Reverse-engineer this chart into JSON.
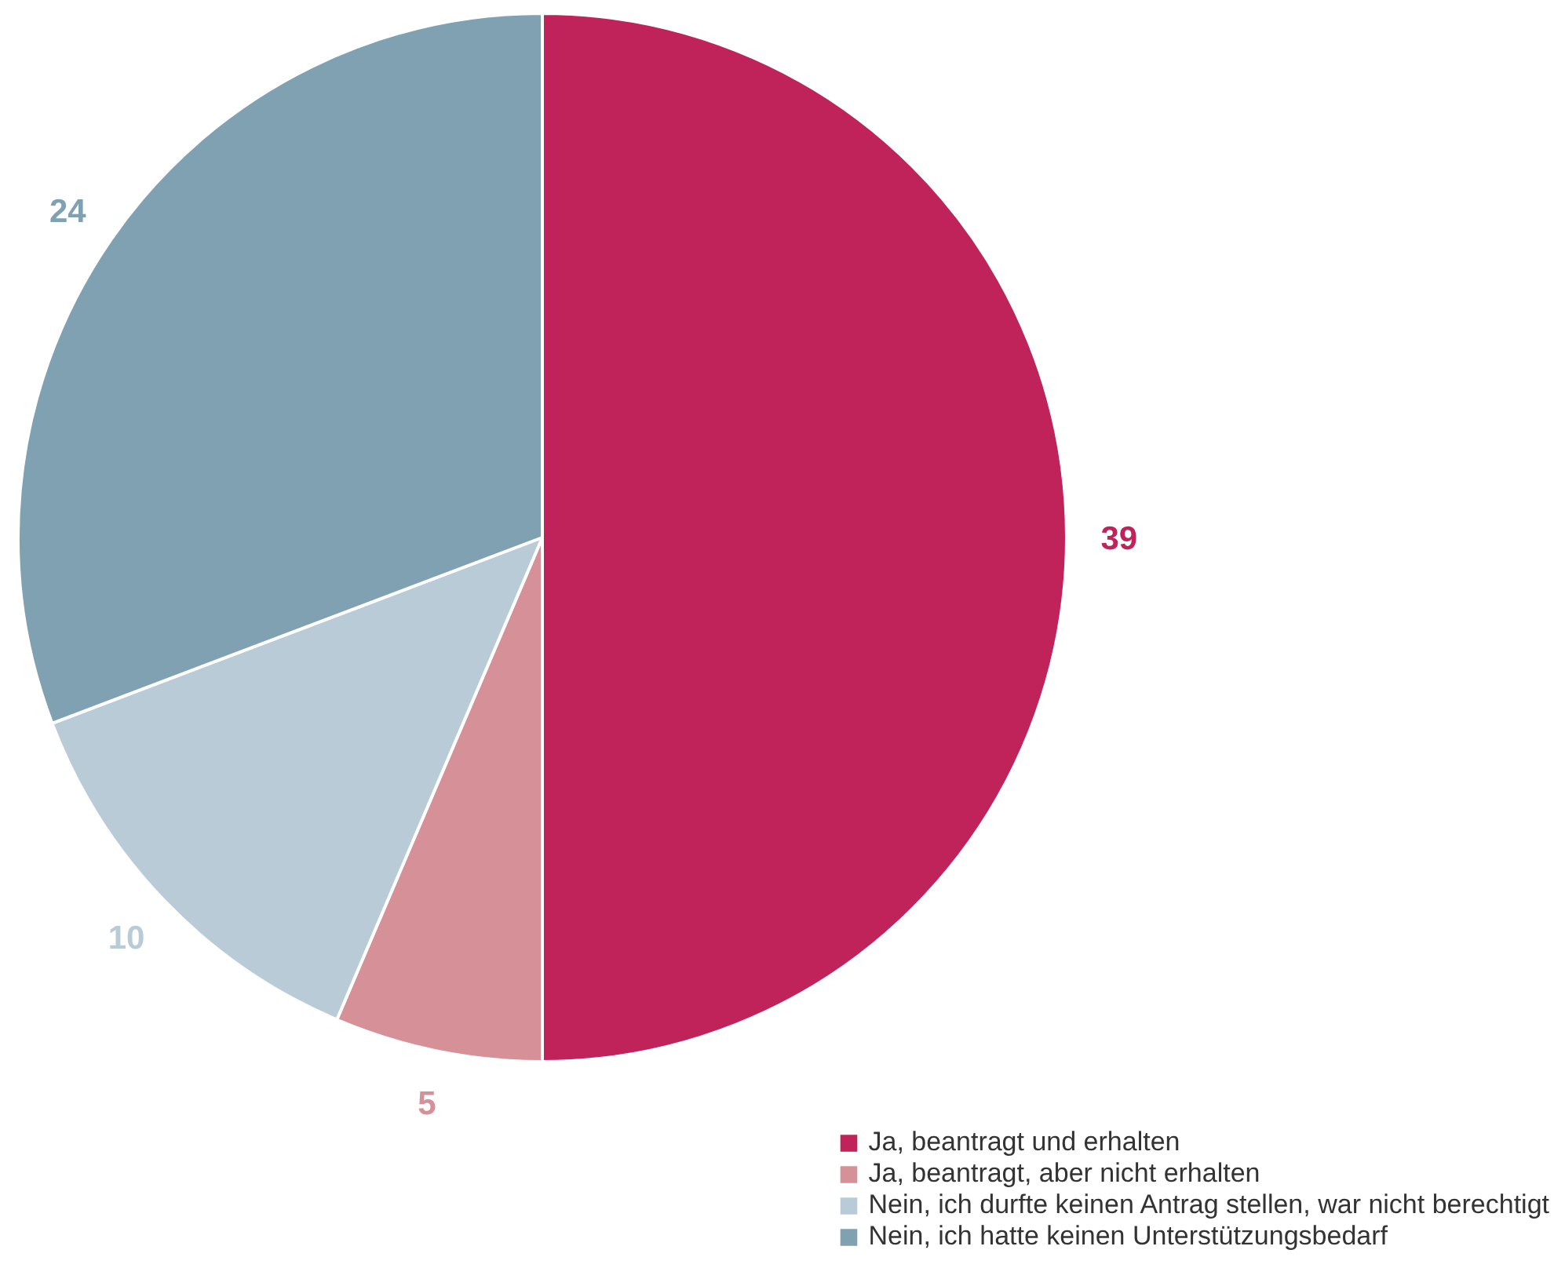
{
  "chart_data": {
    "type": "pie",
    "categories": [
      "Ja, beantragt und erhalten",
      "Ja, beantragt, aber nicht erhalten",
      "Nein, ich durfte keinen Antrag stellen, war nicht berechtigt",
      "Nein, ich hatte keinen Unterstützungsbedarf"
    ],
    "values": [
      39,
      5,
      10,
      24
    ],
    "colors": [
      "#c0225a",
      "#d69098",
      "#b9cbd7",
      "#80a1b1"
    ],
    "data_labels": true,
    "legend": "bottom right"
  }
}
